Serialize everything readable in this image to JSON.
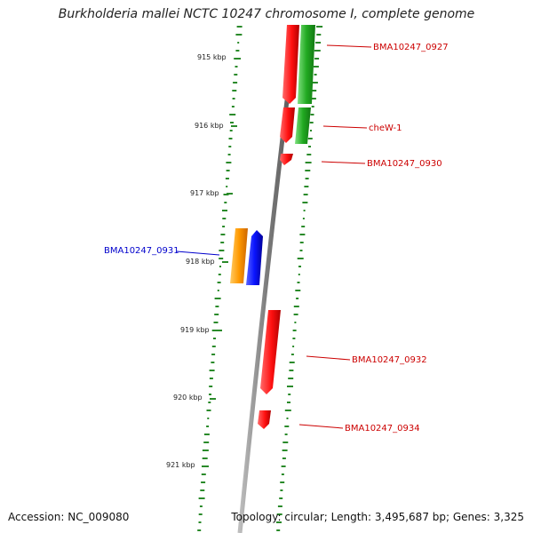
{
  "title": "Burkholderia mallei NCTC 10247 chromosome I, complete genome",
  "footer": {
    "accession": "Accession: NC_009080",
    "summary": "Topology: circular; Length: 3,495,687 bp; Genes: 3,325"
  },
  "colors": {
    "backbone": "#8a8a8a",
    "gc_ticks": "#2a8a2a",
    "forward_gene": "#ff1a1a",
    "label_red": "#cc0000",
    "label_blue": "#0000cc",
    "green_gene": "#33bb33",
    "orange_gene": "#ff9900",
    "blue_gene": "#0a14ff"
  },
  "ticks": [
    {
      "label": "915 kbp"
    },
    {
      "label": "916 kbp"
    },
    {
      "label": "917 kbp"
    },
    {
      "label": "918 kbp"
    },
    {
      "label": "919 kbp"
    },
    {
      "label": "920 kbp"
    },
    {
      "label": "921 kbp"
    }
  ],
  "gene_labels": [
    {
      "text": "BMA10247_0927",
      "color": "red"
    },
    {
      "text": "cheW-1",
      "color": "red"
    },
    {
      "text": "BMA10247_0930",
      "color": "red"
    },
    {
      "text": "BMA10247_0931",
      "color": "blue"
    },
    {
      "text": "BMA10247_0932",
      "color": "red"
    },
    {
      "text": "BMA10247_0934",
      "color": "red"
    }
  ]
}
